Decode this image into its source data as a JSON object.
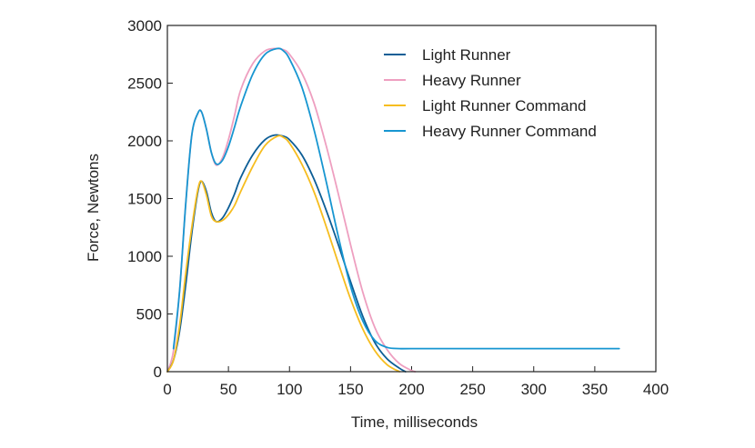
{
  "chart_data": {
    "type": "line",
    "title": "",
    "xlabel": "Time, milliseconds",
    "ylabel": "Force, Newtons",
    "xlim": [
      0,
      400
    ],
    "ylim": [
      0,
      3000
    ],
    "xticks": [
      0,
      50,
      100,
      150,
      200,
      250,
      300,
      350,
      400
    ],
    "yticks": [
      0,
      500,
      1000,
      1500,
      2000,
      2500,
      3000
    ],
    "grid": false,
    "legend_position": "top-right",
    "series": [
      {
        "name": "Light Runner",
        "color": "#0d5e96",
        "x": [
          0,
          5,
          10,
          15,
          20,
          25,
          28,
          32,
          36,
          40,
          45,
          50,
          55,
          60,
          70,
          80,
          88,
          95,
          100,
          110,
          120,
          130,
          140,
          150,
          160,
          170,
          180,
          190,
          195
        ],
        "y": [
          0,
          100,
          350,
          750,
          1200,
          1560,
          1650,
          1560,
          1380,
          1300,
          1330,
          1420,
          1540,
          1680,
          1880,
          2010,
          2050,
          2040,
          2010,
          1880,
          1670,
          1400,
          1100,
          780,
          480,
          250,
          110,
          30,
          0
        ]
      },
      {
        "name": "Heavy Runner",
        "color": "#ee9fc0",
        "x": [
          0,
          5,
          10,
          15,
          20,
          25,
          28,
          32,
          36,
          40,
          45,
          50,
          55,
          60,
          70,
          80,
          88,
          95,
          100,
          110,
          120,
          130,
          140,
          150,
          160,
          170,
          180,
          190,
          200,
          203
        ],
        "y": [
          0,
          180,
          700,
          1450,
          2050,
          2240,
          2250,
          2100,
          1900,
          1790,
          1850,
          2010,
          2220,
          2440,
          2670,
          2780,
          2800,
          2790,
          2750,
          2590,
          2330,
          1960,
          1540,
          1100,
          690,
          380,
          190,
          70,
          10,
          0
        ]
      },
      {
        "name": "Light Runner Command",
        "color": "#f6bd1f",
        "x": [
          0,
          5,
          10,
          15,
          20,
          25,
          28,
          32,
          36,
          40,
          45,
          50,
          55,
          60,
          70,
          80,
          90,
          95,
          100,
          110,
          120,
          130,
          140,
          150,
          160,
          170,
          180,
          190
        ],
        "y": [
          0,
          100,
          400,
          850,
          1250,
          1580,
          1650,
          1530,
          1350,
          1300,
          1310,
          1360,
          1440,
          1560,
          1780,
          1960,
          2040,
          2030,
          1980,
          1800,
          1560,
          1260,
          940,
          630,
          370,
          180,
          60,
          0
        ]
      },
      {
        "name": "Heavy Runner Command",
        "color": "#1796d1",
        "x": [
          5,
          10,
          15,
          20,
          25,
          28,
          32,
          36,
          40,
          45,
          50,
          55,
          60,
          70,
          80,
          90,
          95,
          100,
          110,
          120,
          130,
          140,
          150,
          160,
          170,
          180,
          190,
          200,
          250,
          300,
          350,
          370
        ],
        "y": [
          200,
          700,
          1450,
          2050,
          2240,
          2250,
          2100,
          1900,
          1800,
          1830,
          1950,
          2120,
          2300,
          2580,
          2750,
          2800,
          2780,
          2710,
          2470,
          2100,
          1650,
          1170,
          740,
          440,
          270,
          210,
          200,
          200,
          200,
          200,
          200,
          200
        ]
      }
    ]
  }
}
